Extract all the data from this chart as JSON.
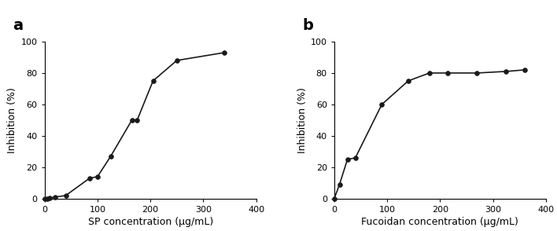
{
  "panel_a": {
    "label": "a",
    "x": [
      0,
      5,
      10,
      20,
      40,
      85,
      100,
      125,
      165,
      175,
      205,
      250,
      340
    ],
    "y": [
      0,
      0,
      0.5,
      1,
      2,
      13,
      14,
      27,
      50,
      50,
      75,
      88,
      93
    ],
    "xlabel": "SP concentration (μg/mL)",
    "ylabel": "Inhibition (%)",
    "xlim": [
      0,
      400
    ],
    "ylim": [
      0,
      100
    ],
    "xticks": [
      0,
      100,
      200,
      300,
      400
    ],
    "yticks": [
      0,
      20,
      40,
      60,
      80,
      100
    ]
  },
  "panel_b": {
    "label": "b",
    "x": [
      0,
      10,
      25,
      40,
      90,
      140,
      180,
      215,
      270,
      325,
      360
    ],
    "y": [
      0,
      9,
      25,
      26,
      60,
      75,
      80,
      80,
      80,
      81,
      82
    ],
    "xlabel": "Fucoidan concentration (μg/mL)",
    "ylabel": "Inhibition (%)",
    "xlim": [
      0,
      400
    ],
    "ylim": [
      0,
      100
    ],
    "xticks": [
      0,
      100,
      200,
      300,
      400
    ],
    "yticks": [
      0,
      20,
      40,
      60,
      80,
      100
    ]
  },
  "line_color": "#1a1a1a",
  "marker": "o",
  "marker_size": 4,
  "marker_facecolor": "#1a1a1a",
  "linewidth": 1.2,
  "label_fontsize": 9,
  "panel_label_fontsize": 14,
  "tick_fontsize": 8,
  "background_color": "#ffffff"
}
